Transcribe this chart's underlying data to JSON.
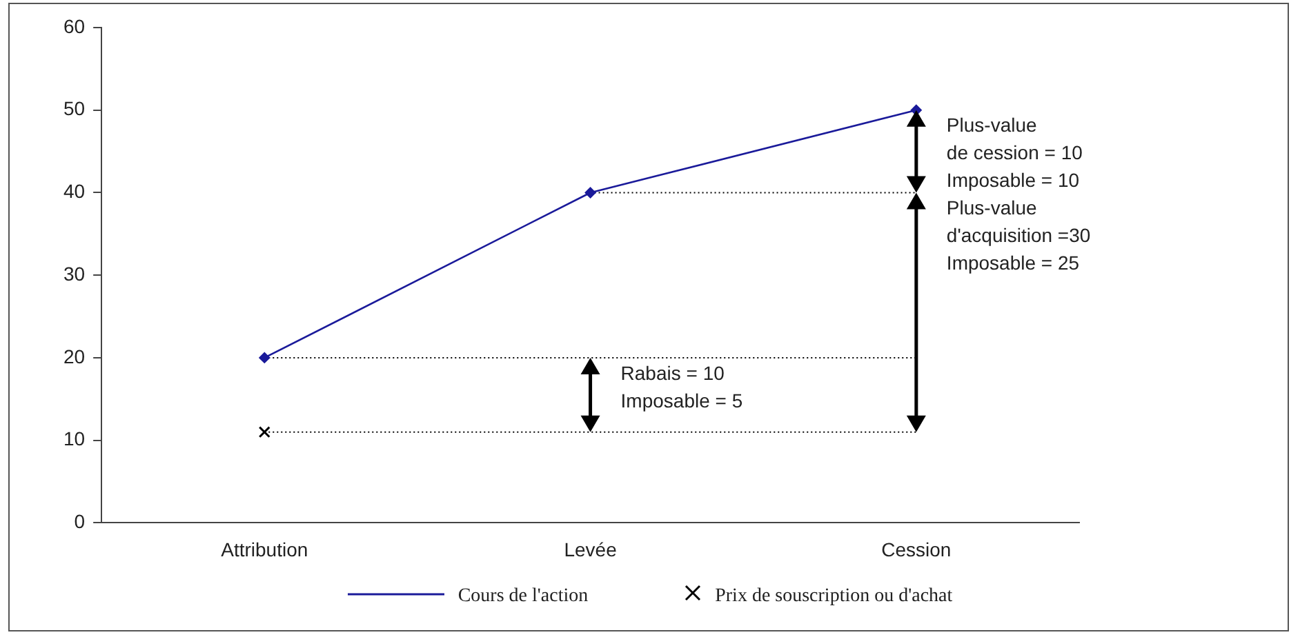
{
  "chart_data": {
    "type": "line",
    "categories": [
      "Attribution",
      "Levée",
      "Cession"
    ],
    "series": [
      {
        "name": "Cours de l'action",
        "color": "#1a1a9a",
        "marker": "diamond",
        "values": [
          20,
          40,
          50
        ]
      },
      {
        "name": "Prix de souscription ou d'achat",
        "type": "scatter",
        "color": "#000000",
        "marker": "cross",
        "values": [
          11,
          null,
          null
        ]
      }
    ],
    "ylim": [
      0,
      60
    ],
    "yticks": [
      0,
      10,
      20,
      30,
      40,
      50,
      60
    ],
    "grid": false,
    "legend": "bottom",
    "ref_lines": [
      {
        "axis": "y",
        "value": 11,
        "color": "#000000",
        "line_style": "dotted"
      },
      {
        "axis": "y",
        "value": 20,
        "color": "#000000",
        "line_style": "dotted"
      },
      {
        "axis": "y",
        "value": 40,
        "color": "#000000",
        "line_style": "dotted"
      }
    ],
    "annotations": [
      {
        "text": "Rabais = 10\nImposable = 5",
        "x": "Levée",
        "y": 20
      },
      {
        "text": "Plus-value\nde cession = 10\nImposable = 10",
        "x": "Cession",
        "y": 50
      },
      {
        "text": "Plus-value\nd'acquisition =30\nImposable = 25",
        "x": "Cession",
        "y": 40
      }
    ]
  }
}
